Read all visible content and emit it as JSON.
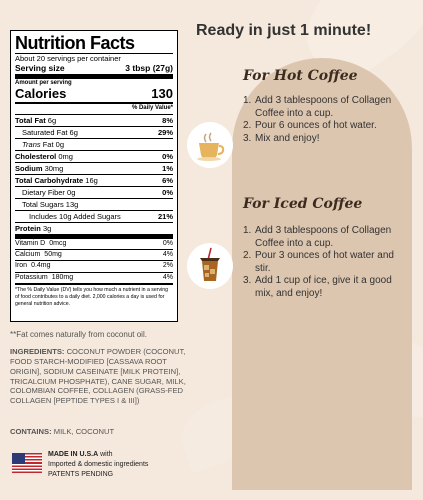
{
  "nutrition": {
    "title": "Nutrition Facts",
    "servings_per_container": "About 20 servings per container",
    "serving_size_label": "Serving size",
    "serving_size_value": "3 tbsp (27g)",
    "amount_per_serving": "Amount per serving",
    "calories_label": "Calories",
    "calories_value": "130",
    "dv_header": "% Daily Value*",
    "rows": [
      {
        "label": "Total Fat",
        "amount": "6g",
        "dv": "8%"
      },
      {
        "label": "Saturated Fat",
        "amount": "6g",
        "dv": "29%"
      },
      {
        "label": "Trans",
        "suffix": "Fat",
        "amount": "0g",
        "dv": ""
      },
      {
        "label": "Cholesterol",
        "amount": "0mg",
        "dv": "0%"
      },
      {
        "label": "Sodium",
        "amount": "30mg",
        "dv": "1%"
      },
      {
        "label": "Total Carbohydrate",
        "amount": "16g",
        "dv": "6%"
      },
      {
        "label": "Dietary Fiber",
        "amount": "0g",
        "dv": "0%"
      },
      {
        "label": "Total Sugars",
        "amount": "13g",
        "dv": ""
      },
      {
        "label": "Includes 10g Added Sugars",
        "amount": "",
        "dv": "21%"
      },
      {
        "label": "Protein",
        "amount": "3g",
        "dv": ""
      }
    ],
    "vitamins": [
      {
        "label": "Vitamin D",
        "amount": "0mcg",
        "dv": "0%"
      },
      {
        "label": "Calcium",
        "amount": "50mg",
        "dv": "4%"
      },
      {
        "label": "Iron",
        "amount": "0.4mg",
        "dv": "2%"
      },
      {
        "label": "Potassium",
        "amount": "180mg",
        "dv": "4%"
      }
    ],
    "footnote": "*The % Daily Value (DV) tells you how much a nutrient in a serving of food contributes to a daily diet. 2,000 calories a day is used for general nutrition advice."
  },
  "fat_note": "**Fat comes naturally from coconut oil.",
  "ingredients": {
    "label": "INGREDIENTS:",
    "text": "COCONUT POWDER (COCONUT, FOOD STARCH-MODIFIED [CASSAVA ROOT ORIGIN], SODIUM CASEINATE [MILK PROTEIN], TRICALCIUM PHOSPHATE), CANE SUGAR, MILK, COLOMBIAN COFFEE, COLLAGEN (GRASS-FED COLLAGEN [PEPTIDE TYPES I & III])",
    "contains_label": "CONTAINS:",
    "contains_text": "MILK, COCONUT"
  },
  "made_in": {
    "line1": "MADE IN U.S.A",
    "line1_suffix": "with",
    "line2": "Imported & domestic ingredients",
    "line3": "PATENTS PENDING"
  },
  "headline": "Ready in just 1 minute!",
  "hot": {
    "title": "For Hot Coffee",
    "steps": [
      "Add 3 tablespoons of Collagen Coffee into a cup.",
      "Pour 6 ounces of hot water.",
      "Mix and enjoy!"
    ]
  },
  "iced": {
    "title": "For Iced Coffee",
    "steps": [
      "Add 3 tablespoons of Collagen Coffee into a cup.",
      "Pour 3 ounces of hot water and stir.",
      "Add 1 cup of ice, give it a good mix, and enjoy!"
    ]
  },
  "colors": {
    "background": "#f5e8dc",
    "panel": "#dcc6b0",
    "heading": "#3b2a1e",
    "flag_red": "#c0272d",
    "flag_blue": "#2d3a75"
  },
  "icons": [
    "hot-coffee-cup-icon",
    "iced-coffee-cup-icon",
    "us-flag-icon"
  ]
}
